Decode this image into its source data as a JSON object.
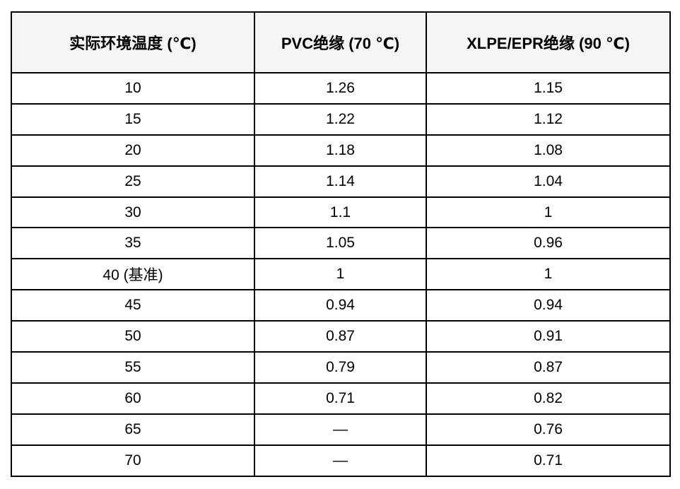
{
  "table": {
    "title_semantic": "ambient-temperature-correction-factors",
    "headers": [
      "实际环境温度 (℃)",
      "PVC绝缘 (70 ℃)",
      "XLPE/EPR绝缘 (90 ℃)"
    ],
    "rows": [
      [
        "10",
        "1.26",
        "1.15"
      ],
      [
        "15",
        "1.22",
        "1.12"
      ],
      [
        "20",
        "1.18",
        "1.08"
      ],
      [
        "25",
        "1.14",
        "1.04"
      ],
      [
        "30",
        "1.1",
        "1"
      ],
      [
        "35",
        "1.05",
        "0.96"
      ],
      [
        "40 (基准)",
        "1",
        "1"
      ],
      [
        "45",
        "0.94",
        "0.94"
      ],
      [
        "50",
        "0.87",
        "0.91"
      ],
      [
        "55",
        "0.79",
        "0.87"
      ],
      [
        "60",
        "0.71",
        "0.82"
      ],
      [
        "65",
        "—",
        "0.76"
      ],
      [
        "70",
        "—",
        "0.71"
      ]
    ],
    "colors": {
      "header_bg": "#f5f5f5",
      "row_bg": "#ffffff",
      "border": "#000000",
      "text": "#000000"
    }
  }
}
